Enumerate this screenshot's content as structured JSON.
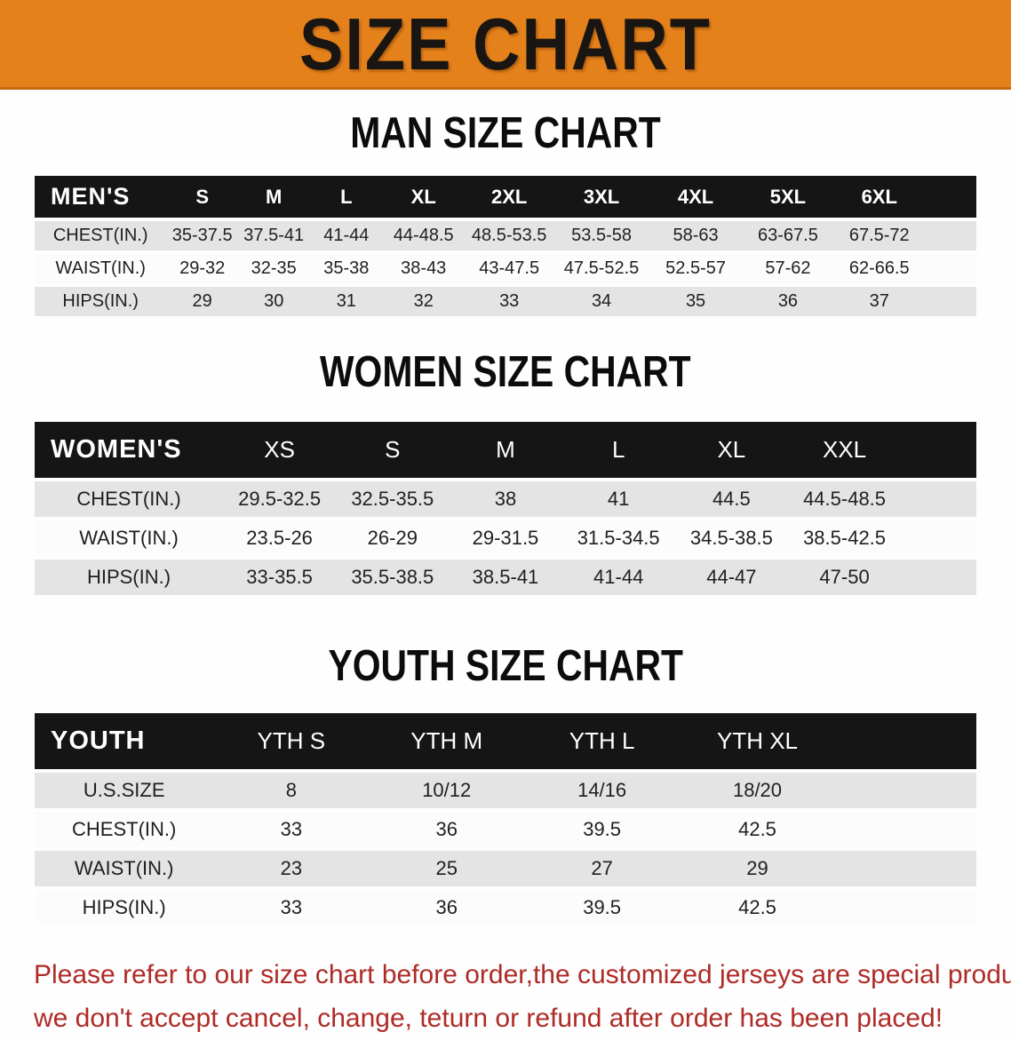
{
  "colors": {
    "banner_bg": "#E5811B",
    "banner_border": "#C9690E",
    "band_black": "#151515",
    "row_gray": "#E4E4E4",
    "disclaimer_red": "#AF2B27"
  },
  "banner": {
    "title": "SIZE CHART"
  },
  "sections": [
    {
      "id": "mens",
      "heading": "MAN SIZE CHART",
      "table": {
        "label": "MEN'S",
        "columns": [
          "S",
          "M",
          "L",
          "XL",
          "2XL",
          "3XL",
          "4XL",
          "5XL",
          "6XL"
        ],
        "rows": [
          {
            "label": "CHEST(IN.)",
            "values": [
              "35-37.5",
              "37.5-41",
              "41-44",
              "44-48.5",
              "48.5-53.5",
              "53.5-58",
              "58-63",
              "63-67.5",
              "67.5-72"
            ]
          },
          {
            "label": "WAIST(IN.)",
            "values": [
              "29-32",
              "32-35",
              "35-38",
              "38-43",
              "43-47.5",
              "47.5-52.5",
              "52.5-57",
              "57-62",
              "62-66.5"
            ]
          },
          {
            "label": "HIPS(IN.)",
            "values": [
              "29",
              "30",
              "31",
              "32",
              "33",
              "34",
              "35",
              "36",
              "37"
            ]
          }
        ]
      }
    },
    {
      "id": "womens",
      "heading": "WOMEN SIZE CHART",
      "table": {
        "label": "WOMEN'S",
        "columns": [
          "XS",
          "S",
          "M",
          "L",
          "XL",
          "XXL"
        ],
        "rows": [
          {
            "label": "CHEST(IN.)",
            "values": [
              "29.5-32.5",
              "32.5-35.5",
              "38",
              "41",
              "44.5",
              "44.5-48.5"
            ]
          },
          {
            "label": "WAIST(IN.)",
            "values": [
              "23.5-26",
              "26-29",
              "29-31.5",
              "31.5-34.5",
              "34.5-38.5",
              "38.5-42.5"
            ]
          },
          {
            "label": "HIPS(IN.)",
            "values": [
              "33-35.5",
              "35.5-38.5",
              "38.5-41",
              "41-44",
              "44-47",
              "47-50"
            ]
          }
        ]
      }
    },
    {
      "id": "youth",
      "heading": "YOUTH SIZE CHART",
      "table": {
        "label": "YOUTH",
        "columns": [
          "YTH S",
          "YTH M",
          "YTH L",
          "YTH XL"
        ],
        "rows": [
          {
            "label": "U.S.SIZE",
            "values": [
              "8",
              "10/12",
              "14/16",
              "18/20"
            ]
          },
          {
            "label": "CHEST(IN.)",
            "values": [
              "33",
              "36",
              "39.5",
              "42.5"
            ]
          },
          {
            "label": "WAIST(IN.)",
            "values": [
              "23",
              "25",
              "27",
              "29"
            ]
          },
          {
            "label": "HIPS(IN.)",
            "values": [
              "33",
              "36",
              "39.5",
              "42.5"
            ]
          }
        ]
      }
    }
  ],
  "disclaimer": {
    "lines": [
      "Please refer to our size chart before order,the customized jerseys are special products,",
      "we don't accept cancel, change, teturn or refund after order has been placed!"
    ]
  }
}
